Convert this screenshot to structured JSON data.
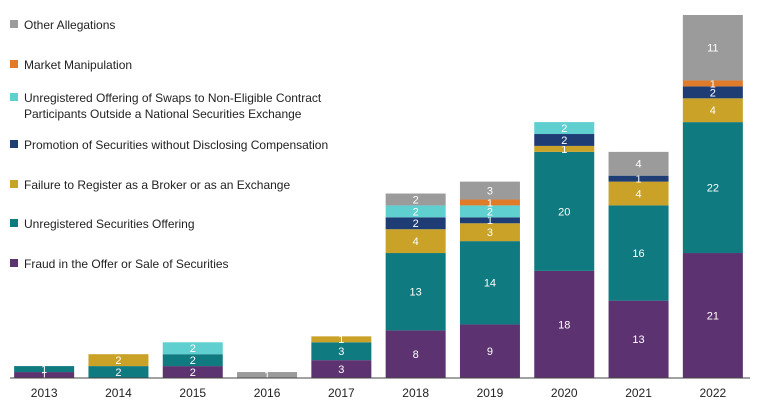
{
  "chart_data": {
    "type": "stacked_bar",
    "categories": [
      "2013",
      "2014",
      "2015",
      "2016",
      "2017",
      "2018",
      "2019",
      "2020",
      "2021",
      "2022"
    ],
    "series": [
      {
        "name": "Fraud in the Offer or Sale of Securities",
        "color": "#5c3370",
        "values": [
          1,
          null,
          2,
          null,
          3,
          8,
          9,
          18,
          13,
          21
        ]
      },
      {
        "name": "Unregistered Securities Offering",
        "color": "#0f7a80",
        "values": [
          1,
          2,
          2,
          null,
          3,
          13,
          14,
          20,
          16,
          22
        ]
      },
      {
        "name": "Failure to Register as a Broker or as an Exchange",
        "color": "#c9a227",
        "values": [
          null,
          2,
          null,
          null,
          1,
          4,
          3,
          1,
          4,
          4
        ]
      },
      {
        "name": "Promotion of Securities without Disclosing Compensation",
        "color": "#1f3d75",
        "values": [
          null,
          null,
          null,
          null,
          null,
          2,
          1,
          2,
          1,
          2
        ]
      },
      {
        "name": "Unregistered Offering of Swaps to Non-Eligible Contract Participants Outside a National Securities Exchange",
        "color": "#5fcfcf",
        "values": [
          null,
          null,
          2,
          null,
          null,
          2,
          2,
          2,
          null,
          null
        ]
      },
      {
        "name": "Market Manipulation",
        "color": "#e07b2a",
        "values": [
          null,
          null,
          null,
          null,
          null,
          null,
          1,
          null,
          null,
          1
        ]
      },
      {
        "name": "Other Allegations",
        "color": "#9b9b9b",
        "values": [
          null,
          null,
          null,
          1,
          null,
          2,
          3,
          null,
          4,
          11
        ]
      }
    ]
  }
}
